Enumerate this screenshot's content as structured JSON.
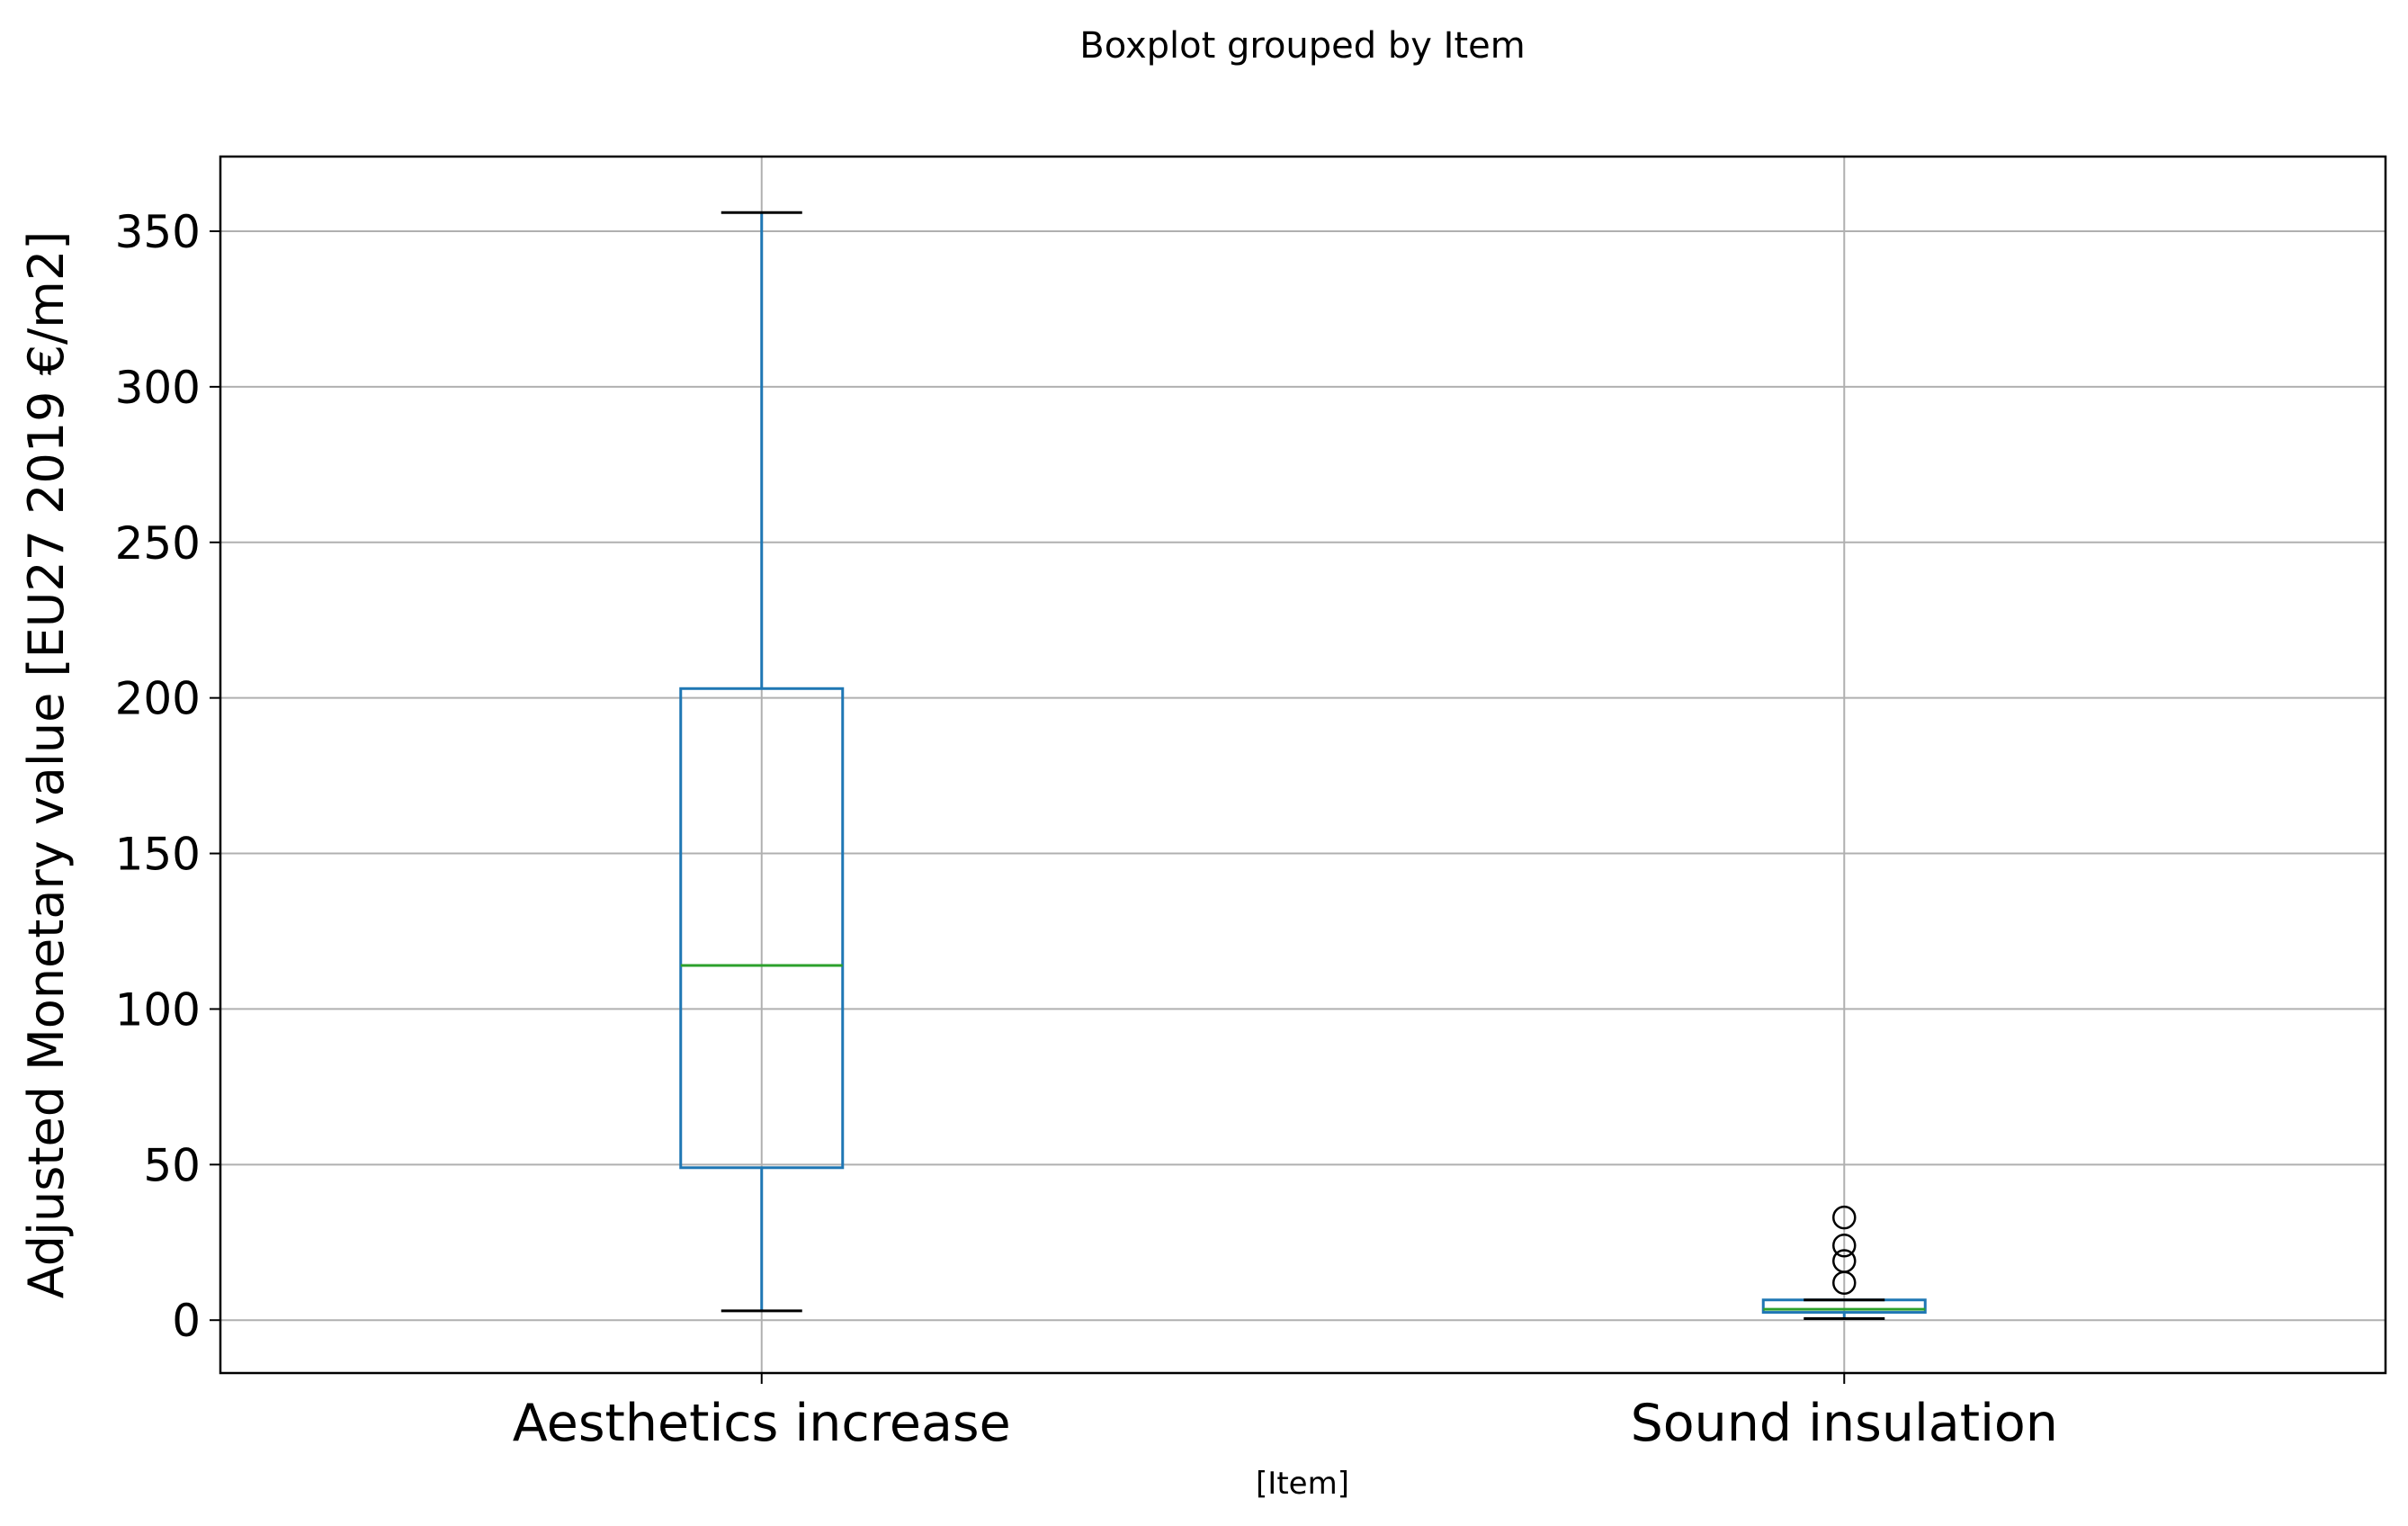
{
  "chart_data": {
    "type": "boxplot",
    "suptitle": "Boxplot grouped by Item",
    "xlabel": "[Item]",
    "ylabel": "Adjusted Monetary value [EU27 2019 €/m2]",
    "ylim": [
      -17,
      374
    ],
    "yticks": [
      0,
      50,
      100,
      150,
      200,
      250,
      300,
      350
    ],
    "grid": true,
    "categories": [
      "Aesthetics increase",
      "Sound insulation"
    ],
    "boxes": [
      {
        "category": "Aesthetics increase",
        "whisker_low": 3,
        "q1": 49,
        "median": 114,
        "q3": 203,
        "whisker_high": 356,
        "outliers": []
      },
      {
        "category": "Sound insulation",
        "whisker_low": 0.5,
        "q1": 2.5,
        "median": 3.5,
        "q3": 6.5,
        "whisker_high": 6.5,
        "outliers": [
          12,
          19,
          24,
          33
        ]
      }
    ],
    "colors": {
      "box": "#1f77b4",
      "median": "#2ca02c",
      "whisker_cap": "#000000",
      "grid": "#b0b0b0",
      "outlier": "#000000"
    }
  }
}
